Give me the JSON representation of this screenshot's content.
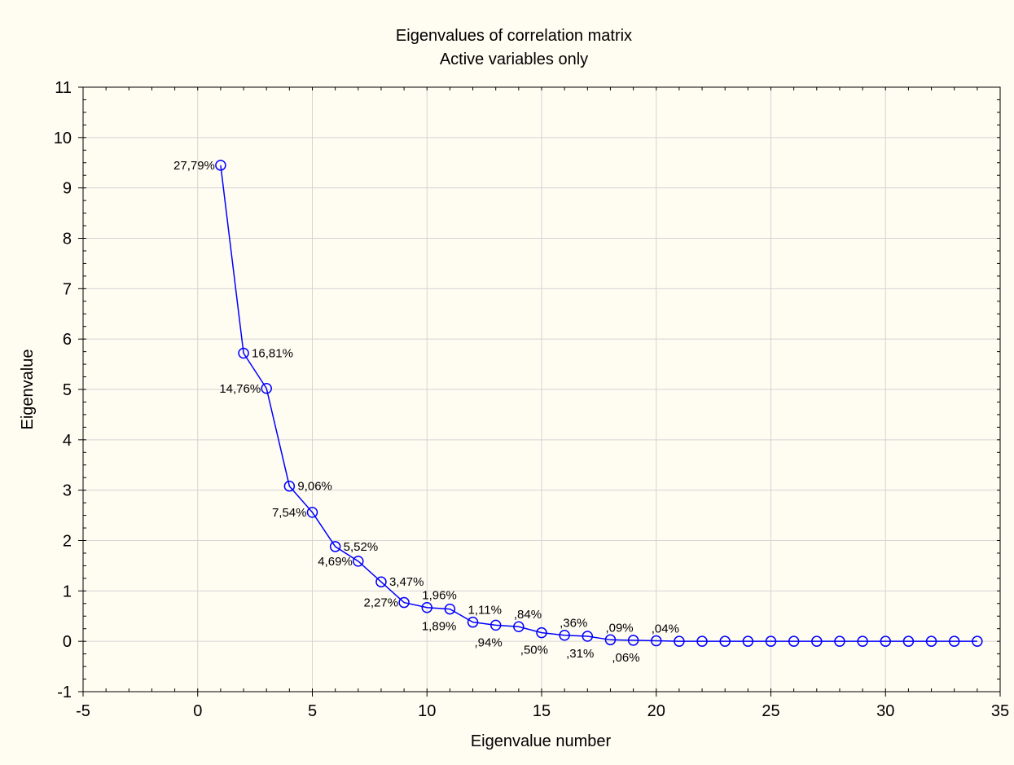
{
  "chart_data": {
    "type": "line",
    "title": "Eigenvalues of correlation matrix",
    "subtitle": "Active variables only",
    "xlabel": "Eigenvalue number",
    "ylabel": "Eigenvalue",
    "xlim": [
      -5,
      35
    ],
    "ylim": [
      -1,
      11
    ],
    "xticks": [
      -5,
      0,
      5,
      10,
      15,
      20,
      25,
      30,
      35
    ],
    "yticks": [
      -1,
      0,
      1,
      2,
      3,
      4,
      5,
      6,
      7,
      8,
      9,
      10,
      11
    ],
    "grid": true,
    "colors": {
      "series": "#0000ff",
      "grid": "#d4d4d4",
      "background": "#fffcf2"
    },
    "x": [
      1,
      2,
      3,
      4,
      5,
      6,
      7,
      8,
      9,
      10,
      11,
      12,
      13,
      14,
      15,
      16,
      17,
      18,
      19,
      20,
      21,
      22,
      23,
      24,
      25,
      26,
      27,
      28,
      29,
      30,
      31,
      32,
      33,
      34
    ],
    "values": [
      9.45,
      5.72,
      5.02,
      3.08,
      2.56,
      1.88,
      1.59,
      1.18,
      0.77,
      0.67,
      0.64,
      0.38,
      0.32,
      0.29,
      0.17,
      0.12,
      0.1,
      0.03,
      0.02,
      0.01,
      0,
      0,
      0,
      0,
      0,
      0,
      0,
      0,
      0,
      0,
      0,
      0,
      0,
      0
    ],
    "labels": [
      {
        "x": 1,
        "text": "27,79%",
        "pos": "left"
      },
      {
        "x": 2,
        "text": "16,81%",
        "pos": "right"
      },
      {
        "x": 3,
        "text": "14,76%",
        "pos": "left"
      },
      {
        "x": 4,
        "text": "9,06%",
        "pos": "right"
      },
      {
        "x": 5,
        "text": "7,54%",
        "pos": "left"
      },
      {
        "x": 6,
        "text": "5,52%",
        "pos": "right"
      },
      {
        "x": 7,
        "text": "4,69%",
        "pos": "left"
      },
      {
        "x": 8,
        "text": "3,47%",
        "pos": "right"
      },
      {
        "x": 9,
        "text": "2,27%",
        "pos": "left"
      },
      {
        "x": 10,
        "text": "1,96%",
        "pos": "above"
      },
      {
        "x": 11,
        "text": "1,89%",
        "pos": "below-left"
      },
      {
        "x": 12,
        "text": "1,11%",
        "pos": "above"
      },
      {
        "x": 13,
        "text": ",94%",
        "pos": "below-left"
      },
      {
        "x": 14,
        "text": ",84%",
        "pos": "above"
      },
      {
        "x": 15,
        "text": ",50%",
        "pos": "below-left"
      },
      {
        "x": 16,
        "text": ",36%",
        "pos": "above"
      },
      {
        "x": 17,
        "text": ",31%",
        "pos": "below-left"
      },
      {
        "x": 18,
        "text": ",09%",
        "pos": "above"
      },
      {
        "x": 19,
        "text": ",06%",
        "pos": "below-left"
      },
      {
        "x": 20,
        "text": ",04%",
        "pos": "above"
      }
    ]
  }
}
